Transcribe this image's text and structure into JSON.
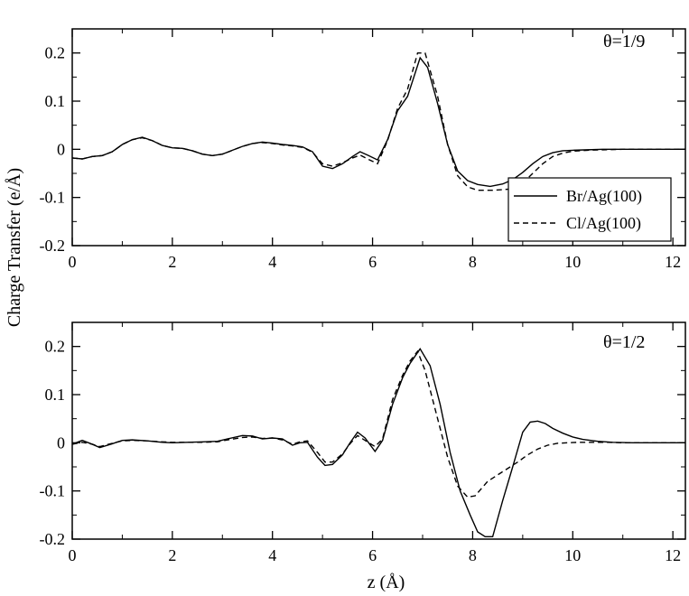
{
  "figure": {
    "shared_ylabel": "Charge Transfer (e/Å)"
  },
  "chart_data": [
    {
      "type": "line",
      "title": "",
      "annotation": "θ=1/9",
      "xlabel": "",
      "ylabel": "Charge Transfer (e/Å)",
      "xlim": [
        0,
        12.25
      ],
      "ylim": [
        -0.2,
        0.25
      ],
      "x_ticks": [
        0,
        2,
        4,
        6,
        8,
        10,
        12
      ],
      "x_tick_labels": [
        "0",
        "2",
        "4",
        "6",
        "8",
        "10",
        "12"
      ],
      "y_ticks": [
        -0.2,
        -0.1,
        0,
        0.1,
        0.2
      ],
      "y_tick_labels": [
        "-0.2",
        "-0.1",
        "0",
        "0.1",
        "0.2"
      ],
      "grid": false,
      "legend": {
        "position": "bottom-right"
      },
      "series": [
        {
          "name": "Br/Ag(100)",
          "style": "solid",
          "color": "#000000",
          "x": [
            0,
            0.2,
            0.4,
            0.6,
            0.8,
            1.0,
            1.2,
            1.4,
            1.6,
            1.8,
            2.0,
            2.2,
            2.4,
            2.6,
            2.8,
            3.0,
            3.2,
            3.4,
            3.6,
            3.8,
            4.0,
            4.2,
            4.4,
            4.6,
            4.8,
            5.0,
            5.2,
            5.4,
            5.6,
            5.75,
            5.9,
            6.1,
            6.3,
            6.5,
            6.7,
            6.95,
            7.1,
            7.3,
            7.5,
            7.7,
            7.9,
            8.1,
            8.35,
            8.6,
            8.8,
            9.0,
            9.2,
            9.4,
            9.6,
            9.8,
            10.0,
            10.3,
            10.6,
            11.0,
            11.5,
            12.0,
            12.25
          ],
          "y": [
            -0.018,
            -0.02,
            -0.015,
            -0.013,
            -0.005,
            0.01,
            0.02,
            0.025,
            0.018,
            0.008,
            0.003,
            0.002,
            -0.003,
            -0.01,
            -0.013,
            -0.01,
            -0.002,
            0.006,
            0.012,
            0.015,
            0.013,
            0.01,
            0.008,
            0.005,
            -0.005,
            -0.035,
            -0.04,
            -0.03,
            -0.015,
            -0.005,
            -0.012,
            -0.022,
            0.02,
            0.08,
            0.11,
            0.19,
            0.17,
            0.095,
            0.01,
            -0.045,
            -0.065,
            -0.073,
            -0.077,
            -0.072,
            -0.063,
            -0.048,
            -0.03,
            -0.015,
            -0.007,
            -0.003,
            -0.002,
            -0.001,
            0,
            0,
            0,
            0,
            0
          ]
        },
        {
          "name": "Cl/Ag(100)",
          "style": "dashed",
          "color": "#000000",
          "x": [
            0,
            0.2,
            0.4,
            0.6,
            0.8,
            1.0,
            1.2,
            1.4,
            1.6,
            1.8,
            2.0,
            2.2,
            2.4,
            2.6,
            2.8,
            3.0,
            3.2,
            3.4,
            3.6,
            3.8,
            4.0,
            4.2,
            4.4,
            4.6,
            4.8,
            5.0,
            5.2,
            5.4,
            5.6,
            5.75,
            5.9,
            6.1,
            6.3,
            6.5,
            6.7,
            6.9,
            7.05,
            7.3,
            7.5,
            7.7,
            7.9,
            8.1,
            8.4,
            8.7,
            9.0,
            9.2,
            9.4,
            9.6,
            9.8,
            10.0,
            10.3,
            10.6,
            11.0,
            11.5,
            12.0,
            12.25
          ],
          "y": [
            -0.018,
            -0.02,
            -0.015,
            -0.013,
            -0.005,
            0.01,
            0.02,
            0.024,
            0.018,
            0.008,
            0.003,
            0.002,
            -0.003,
            -0.01,
            -0.013,
            -0.01,
            -0.002,
            0.006,
            0.012,
            0.014,
            0.012,
            0.009,
            0.007,
            0.004,
            -0.006,
            -0.03,
            -0.035,
            -0.028,
            -0.018,
            -0.012,
            -0.02,
            -0.03,
            0.018,
            0.085,
            0.125,
            0.2,
            0.2,
            0.11,
            0.01,
            -0.055,
            -0.078,
            -0.085,
            -0.085,
            -0.083,
            -0.07,
            -0.05,
            -0.03,
            -0.015,
            -0.008,
            -0.004,
            -0.002,
            -0.001,
            0,
            0,
            0,
            0
          ]
        }
      ]
    },
    {
      "type": "line",
      "title": "",
      "annotation": "θ=1/2",
      "xlabel": "z (Å)",
      "ylabel": "Charge Transfer (e/Å)",
      "xlim": [
        0,
        12.25
      ],
      "ylim": [
        -0.2,
        0.25
      ],
      "x_ticks": [
        0,
        2,
        4,
        6,
        8,
        10,
        12
      ],
      "x_tick_labels": [
        "0",
        "2",
        "4",
        "6",
        "8",
        "10",
        "12"
      ],
      "y_ticks": [
        -0.2,
        -0.1,
        0,
        0.1,
        0.2
      ],
      "y_tick_labels": [
        "-0.2",
        "-0.1",
        "0",
        "0.1",
        "0.2"
      ],
      "grid": false,
      "series": [
        {
          "name": "Br/Ag(100)",
          "style": "solid",
          "color": "#000000",
          "x": [
            0,
            0.2,
            0.4,
            0.55,
            0.8,
            1.0,
            1.2,
            1.5,
            1.8,
            2.0,
            2.3,
            2.6,
            2.9,
            3.1,
            3.4,
            3.6,
            3.8,
            4.0,
            4.2,
            4.4,
            4.55,
            4.7,
            4.9,
            5.05,
            5.2,
            5.4,
            5.55,
            5.7,
            5.85,
            6.05,
            6.2,
            6.4,
            6.6,
            6.75,
            6.95,
            7.15,
            7.35,
            7.55,
            7.75,
            7.95,
            8.1,
            8.25,
            8.4,
            8.6,
            8.8,
            9.0,
            9.15,
            9.3,
            9.45,
            9.6,
            9.8,
            10.0,
            10.2,
            10.5,
            10.8,
            11.2,
            11.6,
            12.0,
            12.25
          ],
          "y": [
            -0.003,
            0.005,
            -0.003,
            -0.01,
            -0.002,
            0.005,
            0.006,
            0.004,
            0.001,
            0.0,
            0.001,
            0.002,
            0.003,
            0.008,
            0.015,
            0.014,
            0.008,
            0.01,
            0.008,
            -0.005,
            0.0,
            0.001,
            -0.03,
            -0.047,
            -0.045,
            -0.025,
            0.0,
            0.022,
            0.01,
            -0.018,
            0.005,
            0.08,
            0.135,
            0.165,
            0.195,
            0.16,
            0.08,
            -0.02,
            -0.1,
            -0.15,
            -0.185,
            -0.195,
            -0.195,
            -0.12,
            -0.05,
            0.022,
            0.043,
            0.045,
            0.04,
            0.03,
            0.02,
            0.012,
            0.007,
            0.003,
            0.001,
            0,
            0,
            0,
            0
          ]
        },
        {
          "name": "Cl/Ag(100)",
          "style": "dashed",
          "color": "#000000",
          "x": [
            0,
            0.2,
            0.4,
            0.55,
            0.8,
            1.0,
            1.2,
            1.5,
            1.8,
            2.0,
            2.3,
            2.6,
            2.9,
            3.1,
            3.4,
            3.6,
            3.8,
            4.0,
            4.2,
            4.4,
            4.55,
            4.7,
            4.9,
            5.05,
            5.2,
            5.4,
            5.55,
            5.7,
            5.85,
            6.05,
            6.2,
            6.4,
            6.6,
            6.75,
            6.9,
            7.05,
            7.3,
            7.5,
            7.7,
            7.9,
            8.05,
            8.3,
            8.6,
            8.9,
            9.1,
            9.3,
            9.5,
            9.7,
            9.9,
            10.1,
            10.4,
            10.7,
            11.0,
            11.5,
            12.0,
            12.25
          ],
          "y": [
            -0.003,
            0.001,
            -0.003,
            -0.008,
            -0.001,
            0.004,
            0.005,
            0.004,
            0.002,
            0.001,
            0.001,
            0.001,
            0.002,
            0.006,
            0.011,
            0.012,
            0.009,
            0.01,
            0.006,
            -0.003,
            0.002,
            0.004,
            -0.02,
            -0.04,
            -0.04,
            -0.023,
            -0.002,
            0.015,
            0.005,
            -0.008,
            0.008,
            0.09,
            0.14,
            0.17,
            0.19,
            0.15,
            0.05,
            -0.03,
            -0.09,
            -0.113,
            -0.11,
            -0.08,
            -0.06,
            -0.04,
            -0.025,
            -0.013,
            -0.005,
            -0.001,
            0.0,
            0.001,
            0.001,
            0.001,
            0,
            0,
            0,
            0
          ]
        }
      ]
    }
  ]
}
